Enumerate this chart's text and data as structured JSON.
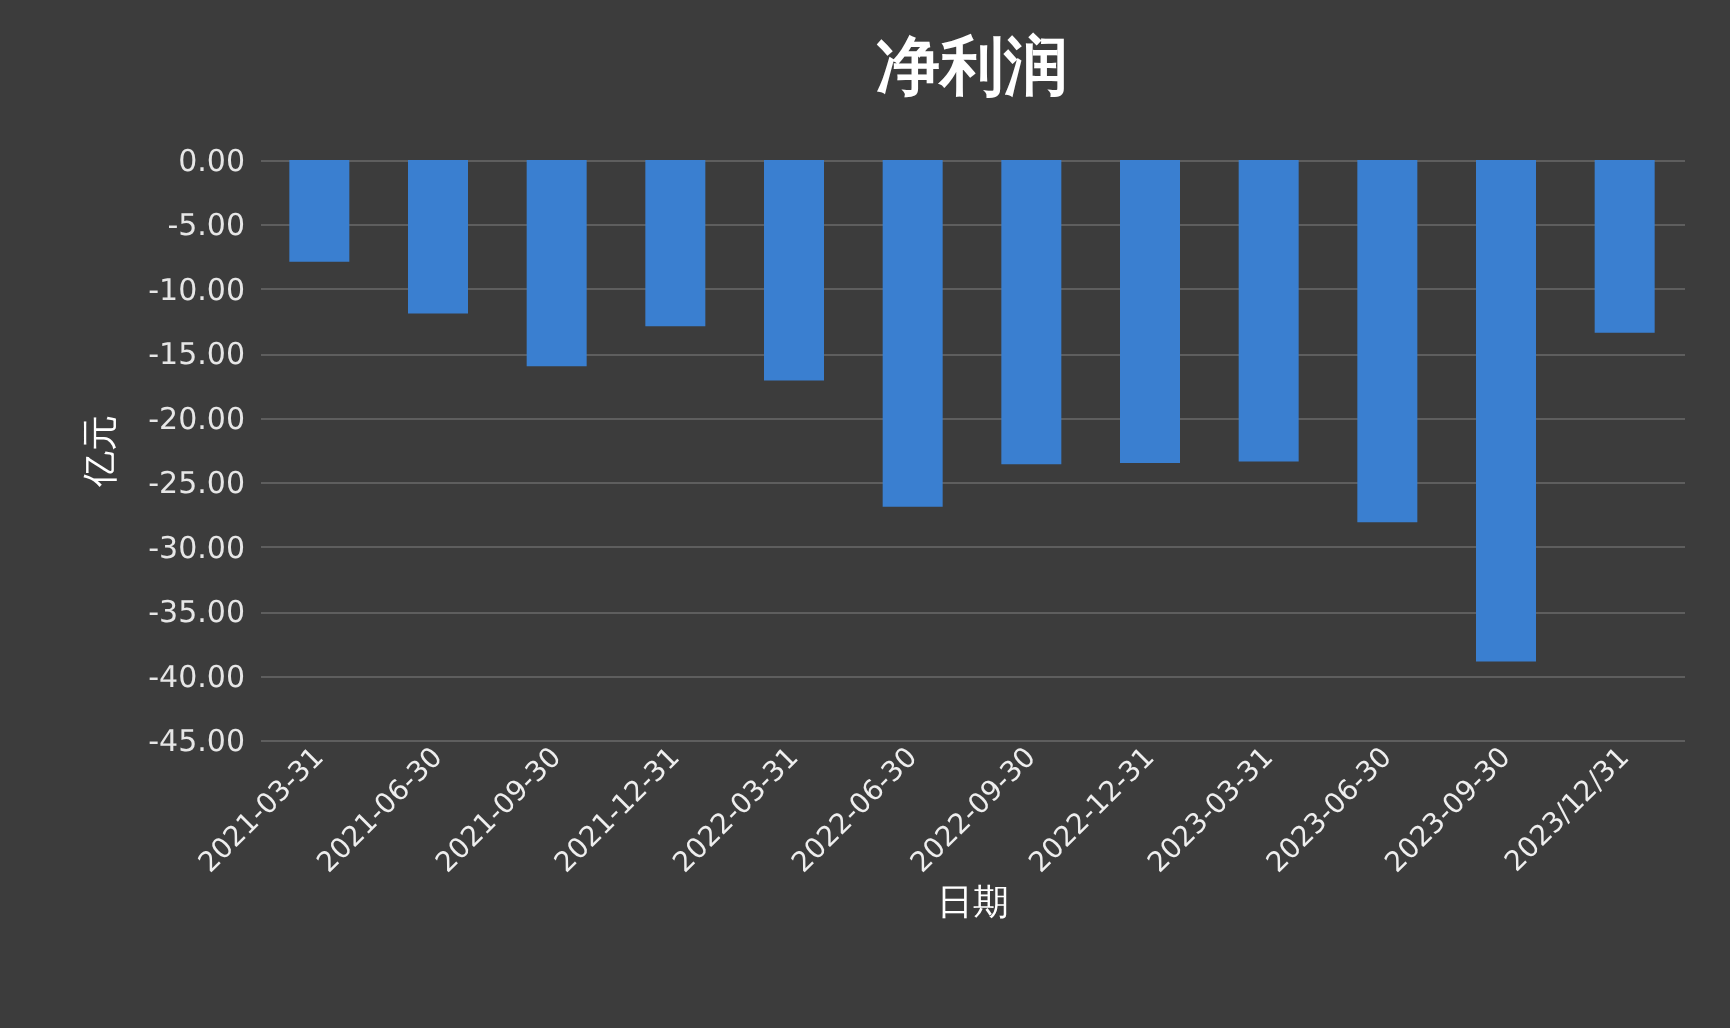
{
  "chart_data": {
    "type": "bar",
    "title": "净利润",
    "xlabel": "日期",
    "ylabel": "亿元",
    "categories": [
      "2021-03-31",
      "2021-06-30",
      "2021-09-30",
      "2021-12-31",
      "2022-03-31",
      "2022-06-30",
      "2022-09-30",
      "2022-12-31",
      "2023-03-31",
      "2023-06-30",
      "2023-09-30",
      "2023/12/31"
    ],
    "values": [
      -7.9,
      -11.9,
      -16.0,
      -12.9,
      -17.1,
      -26.9,
      -23.6,
      -23.5,
      -23.4,
      -28.1,
      -38.9,
      -13.4
    ],
    "color": "#3a7fd0",
    "ylim": [
      -45,
      0
    ],
    "yticks": [
      {
        "value": 0,
        "label": "0.00"
      },
      {
        "value": -5,
        "label": "-5.00"
      },
      {
        "value": -10,
        "label": "-10.00"
      },
      {
        "value": -15,
        "label": "-15.00"
      },
      {
        "value": -20,
        "label": "-20.00"
      },
      {
        "value": -25,
        "label": "-25.00"
      },
      {
        "value": -30,
        "label": "-30.00"
      },
      {
        "value": -35,
        "label": "-35.00"
      },
      {
        "value": -40,
        "label": "-40.00"
      },
      {
        "value": -45,
        "label": "-45.00"
      }
    ],
    "grid": "y"
  }
}
